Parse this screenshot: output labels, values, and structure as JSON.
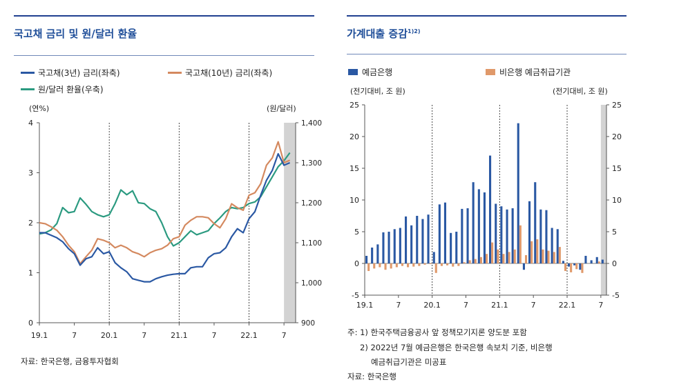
{
  "left": {
    "title": "국고채 금리 및 원/달러 환율",
    "legend": {
      "s3y": "국고채(3년) 금리(좌축)",
      "s10y": "국고채(10년) 금리(좌축)",
      "fx": "원/달러 환율(우축)"
    },
    "unit_left": "(연%)",
    "unit_right": "(원/달러)",
    "source": "자료: 한국은행, 금융투자협회"
  },
  "right": {
    "title": "가계대출 증감",
    "title_sup": "1)2)",
    "legend": {
      "bank": "예금은행",
      "nonbank": "비은행 예금취급기관"
    },
    "unit_left": "(전기대비, 조 원)",
    "unit_right": "(전기대비, 조 원)",
    "notes": [
      "주: 1) 한국주택금융공사 앞 정책모기지론 양도분 포함",
      "2) 2022년 7월 예금은행은 한국은행 속보치 기준, 비은행",
      "예금취급기관은 미공표"
    ],
    "source": "자료: 한국은행"
  },
  "chart_data": [
    {
      "type": "line",
      "title": "국고채 금리 및 원/달러 환율",
      "x_tick_labels": [
        "19.1",
        "7",
        "20.1",
        "7",
        "21.1",
        "7",
        "22.1",
        "7"
      ],
      "y_left": {
        "label": "(연%)",
        "ylim": [
          0,
          4
        ],
        "ticks": [
          0,
          1,
          2,
          3,
          4
        ]
      },
      "y_right": {
        "label": "(원/달러)",
        "ylim": [
          900,
          1400
        ],
        "ticks": [
          900,
          1000,
          1100,
          1200,
          1300,
          1400
        ],
        "tick_labels": [
          "900",
          "1,000",
          "1,100",
          "1,200",
          "1,300",
          "1,400"
        ]
      },
      "colors": {
        "s3y": "#2a58a3",
        "s10y": "#d4895f",
        "fx": "#2b9a80"
      },
      "shaded_period": [
        "2022-07",
        "2022-08"
      ],
      "series": [
        {
          "name": "국고채(3년) 금리(좌축)",
          "axis": "left",
          "x": [
            "2019-01",
            "2019-02",
            "2019-03",
            "2019-04",
            "2019-05",
            "2019-06",
            "2019-07",
            "2019-08",
            "2019-09",
            "2019-10",
            "2019-11",
            "2019-12",
            "2020-01",
            "2020-02",
            "2020-03",
            "2020-04",
            "2020-05",
            "2020-06",
            "2020-07",
            "2020-08",
            "2020-09",
            "2020-10",
            "2020-11",
            "2020-12",
            "2021-01",
            "2021-02",
            "2021-03",
            "2021-04",
            "2021-05",
            "2021-06",
            "2021-07",
            "2021-08",
            "2021-09",
            "2021-10",
            "2021-11",
            "2021-12",
            "2022-01",
            "2022-02",
            "2022-03",
            "2022-04",
            "2022-05",
            "2022-06",
            "2022-07",
            "2022-08"
          ],
          "values": [
            1.8,
            1.8,
            1.75,
            1.7,
            1.62,
            1.48,
            1.38,
            1.15,
            1.28,
            1.32,
            1.5,
            1.38,
            1.42,
            1.2,
            1.1,
            1.02,
            0.88,
            0.85,
            0.82,
            0.82,
            0.88,
            0.92,
            0.95,
            0.97,
            0.98,
            0.98,
            1.1,
            1.12,
            1.12,
            1.3,
            1.38,
            1.4,
            1.5,
            1.72,
            1.88,
            1.8,
            2.08,
            2.22,
            2.55,
            2.85,
            3.05,
            3.38,
            3.15,
            3.2
          ]
        },
        {
          "name": "국고채(10년) 금리(좌축)",
          "axis": "left",
          "x": [
            "2019-01",
            "2019-02",
            "2019-03",
            "2019-04",
            "2019-05",
            "2019-06",
            "2019-07",
            "2019-08",
            "2019-09",
            "2019-10",
            "2019-11",
            "2019-12",
            "2020-01",
            "2020-02",
            "2020-03",
            "2020-04",
            "2020-05",
            "2020-06",
            "2020-07",
            "2020-08",
            "2020-09",
            "2020-10",
            "2020-11",
            "2020-12",
            "2021-01",
            "2021-02",
            "2021-03",
            "2021-04",
            "2021-05",
            "2021-06",
            "2021-07",
            "2021-08",
            "2021-09",
            "2021-10",
            "2021-11",
            "2021-12",
            "2022-01",
            "2022-02",
            "2022-03",
            "2022-04",
            "2022-05",
            "2022-06",
            "2022-07",
            "2022-08"
          ],
          "values": [
            2.0,
            1.98,
            1.92,
            1.85,
            1.72,
            1.55,
            1.42,
            1.18,
            1.32,
            1.45,
            1.68,
            1.65,
            1.6,
            1.5,
            1.55,
            1.5,
            1.42,
            1.38,
            1.32,
            1.4,
            1.45,
            1.48,
            1.55,
            1.68,
            1.72,
            1.95,
            2.05,
            2.12,
            2.12,
            2.1,
            1.98,
            1.9,
            2.08,
            2.38,
            2.3,
            2.25,
            2.55,
            2.6,
            2.78,
            3.15,
            3.3,
            3.62,
            3.2,
            3.25
          ]
        },
        {
          "name": "원/달러 환율(우축)",
          "axis": "right",
          "x": [
            "2019-01",
            "2019-02",
            "2019-03",
            "2019-04",
            "2019-05",
            "2019-06",
            "2019-07",
            "2019-08",
            "2019-09",
            "2019-10",
            "2019-11",
            "2019-12",
            "2020-01",
            "2020-02",
            "2020-03",
            "2020-04",
            "2020-05",
            "2020-06",
            "2020-07",
            "2020-08",
            "2020-09",
            "2020-10",
            "2020-11",
            "2020-12",
            "2021-01",
            "2021-02",
            "2021-03",
            "2021-04",
            "2021-05",
            "2021-06",
            "2021-07",
            "2021-08",
            "2021-09",
            "2021-10",
            "2021-11",
            "2021-12",
            "2022-01",
            "2022-02",
            "2022-03",
            "2022-04",
            "2022-05",
            "2022-06",
            "2022-07",
            "2022-08"
          ],
          "values": [
            1122,
            1125,
            1132,
            1148,
            1188,
            1175,
            1178,
            1212,
            1196,
            1178,
            1170,
            1165,
            1170,
            1198,
            1232,
            1220,
            1230,
            1200,
            1198,
            1185,
            1178,
            1150,
            1115,
            1092,
            1100,
            1115,
            1130,
            1120,
            1125,
            1130,
            1148,
            1162,
            1178,
            1188,
            1185,
            1188,
            1198,
            1202,
            1215,
            1240,
            1265,
            1290,
            1305,
            1325
          ]
        }
      ]
    },
    {
      "type": "bar",
      "title": "가계대출 증감",
      "x_tick_labels": [
        "19.1",
        "7",
        "20.1",
        "7",
        "21.1",
        "7",
        "22.1",
        "7"
      ],
      "x": [
        "2019-01",
        "2019-02",
        "2019-03",
        "2019-04",
        "2019-05",
        "2019-06",
        "2019-07",
        "2019-08",
        "2019-09",
        "2019-10",
        "2019-11",
        "2019-12",
        "2020-01",
        "2020-02",
        "2020-03",
        "2020-04",
        "2020-05",
        "2020-06",
        "2020-07",
        "2020-08",
        "2020-09",
        "2020-10",
        "2020-11",
        "2020-12",
        "2021-01",
        "2021-02",
        "2021-03",
        "2021-04",
        "2021-05",
        "2021-06",
        "2021-07",
        "2021-08",
        "2021-09",
        "2021-10",
        "2021-11",
        "2021-12",
        "2022-01",
        "2022-02",
        "2022-03",
        "2022-04",
        "2022-05",
        "2022-06",
        "2022-07"
      ],
      "ylim": [
        -5,
        25
      ],
      "y_ticks": [
        -5,
        0,
        5,
        10,
        15,
        20,
        25
      ],
      "colors": {
        "bank": "#2a58a3",
        "nonbank": "#e0996a"
      },
      "shaded_period": [
        "2022-07",
        "2022-07"
      ],
      "series": [
        {
          "name": "예금은행",
          "values": [
            1.2,
            2.5,
            3.0,
            4.9,
            5.0,
            5.4,
            5.6,
            7.4,
            6.0,
            7.5,
            7.0,
            7.7,
            1.8,
            9.3,
            9.6,
            4.8,
            5.0,
            8.6,
            8.7,
            12.8,
            11.7,
            11.2,
            17.0,
            9.4,
            9.0,
            8.5,
            8.7,
            22.1,
            -1.0,
            9.8,
            12.8,
            8.5,
            8.4,
            5.6,
            5.4,
            0.4,
            -0.5,
            -0.3,
            -1.0,
            1.2,
            0.5,
            1.0,
            0.6
          ]
        },
        {
          "name": "비은행 예금취급기관",
          "values": [
            -1.2,
            -0.8,
            -0.6,
            -1.0,
            -0.8,
            -0.6,
            -0.4,
            -0.6,
            -0.5,
            -0.4,
            -0.2,
            -0.1,
            -1.5,
            -0.4,
            -0.3,
            -0.5,
            -0.4,
            0.2,
            0.5,
            0.7,
            1.0,
            1.5,
            3.3,
            2.2,
            1.5,
            1.8,
            2.2,
            6.0,
            1.3,
            3.5,
            3.8,
            2.2,
            2.0,
            1.8,
            2.6,
            -1.2,
            -1.4,
            -0.9,
            -1.5,
            0.0,
            0.0,
            0.3,
            0.0
          ]
        }
      ]
    }
  ]
}
